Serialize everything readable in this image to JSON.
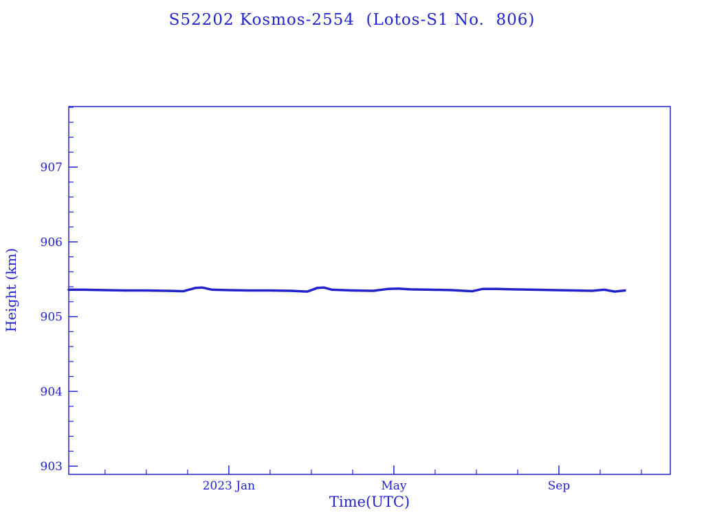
{
  "chart_data": {
    "type": "line",
    "title": "S52202 Kosmos-2554  (Lotos-S1 No.  806)",
    "xlabel": "Time(UTC)",
    "ylabel": "Height (km)",
    "x_unit": "months since 2022-09-01",
    "xlim": [
      0.12,
      14.7
    ],
    "ylim": [
      902.89,
      907.81
    ],
    "yticks": [
      903,
      904,
      905,
      906,
      907
    ],
    "y_minor_step": 0.2,
    "xticks": [
      {
        "pos": 4,
        "label": "2023 Jan"
      },
      {
        "pos": 8,
        "label": "May"
      },
      {
        "pos": 12,
        "label": "Sep"
      }
    ],
    "x_minor_positions": [
      1,
      2,
      3,
      5,
      6,
      7,
      9,
      10,
      11,
      13,
      14
    ],
    "grid": false,
    "legend": "none",
    "line_color": "#2222cc",
    "series": [
      {
        "name": "height",
        "x": [
          0.12,
          0.5,
          1.0,
          1.5,
          2.0,
          2.5,
          2.9,
          3.2,
          3.35,
          3.6,
          4.0,
          4.5,
          5.0,
          5.5,
          5.9,
          6.15,
          6.3,
          6.5,
          7.0,
          7.5,
          7.85,
          8.1,
          8.4,
          8.9,
          9.4,
          9.9,
          10.15,
          10.5,
          10.9,
          11.4,
          11.9,
          12.4,
          12.8,
          13.1,
          13.35,
          13.6
        ],
        "y": [
          905.36,
          905.36,
          905.355,
          905.35,
          905.35,
          905.345,
          905.34,
          905.385,
          905.39,
          905.36,
          905.355,
          905.35,
          905.35,
          905.345,
          905.335,
          905.385,
          905.39,
          905.36,
          905.35,
          905.345,
          905.37,
          905.375,
          905.365,
          905.36,
          905.355,
          905.34,
          905.37,
          905.37,
          905.365,
          905.36,
          905.355,
          905.35,
          905.345,
          905.36,
          905.335,
          905.35
        ]
      }
    ]
  }
}
